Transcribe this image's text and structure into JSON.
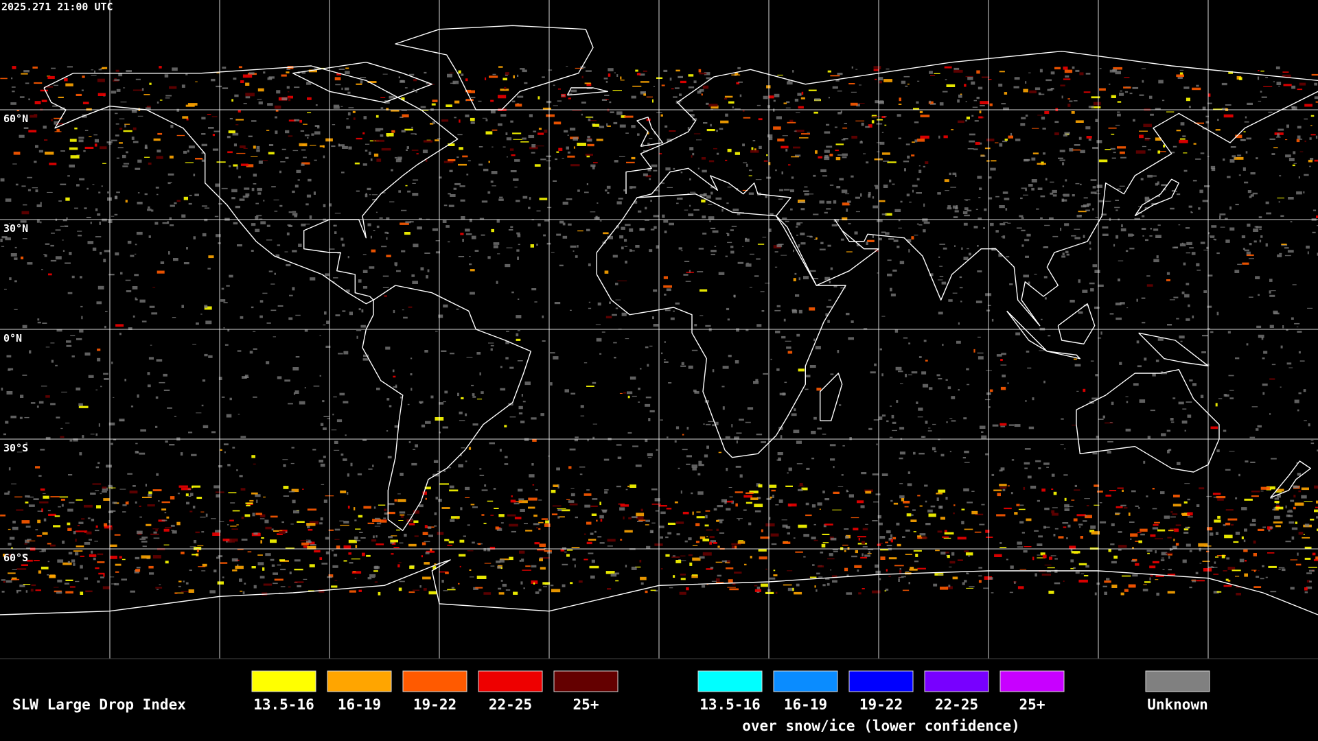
{
  "timestamp": "2025.271 21:00 UTC",
  "latitude_labels": [
    "60°N",
    "30°N",
    "0°N",
    "30°S",
    "60°S"
  ],
  "legend": {
    "title": "SLW Large Drop Index",
    "groups": [
      {
        "items": [
          {
            "label": "13.5-16",
            "color": "#ffff00"
          },
          {
            "label": "16-19",
            "color": "#ffa500"
          },
          {
            "label": "19-22",
            "color": "#ff5a00"
          },
          {
            "label": "22-25",
            "color": "#ee0000"
          },
          {
            "label": "25+",
            "color": "#640000"
          }
        ]
      },
      {
        "items": [
          {
            "label": "13.5-16",
            "color": "#00ffff"
          },
          {
            "label": "16-19",
            "color": "#0a8cff"
          },
          {
            "label": "19-22",
            "color": "#0000ff"
          },
          {
            "label": "22-25",
            "color": "#7800ff"
          },
          {
            "label": "25+",
            "color": "#c800ff"
          }
        ],
        "caption": "over snow/ice (lower confidence)"
      },
      {
        "items": [
          {
            "label": "Unknown",
            "color": "#808080"
          }
        ]
      }
    ]
  }
}
